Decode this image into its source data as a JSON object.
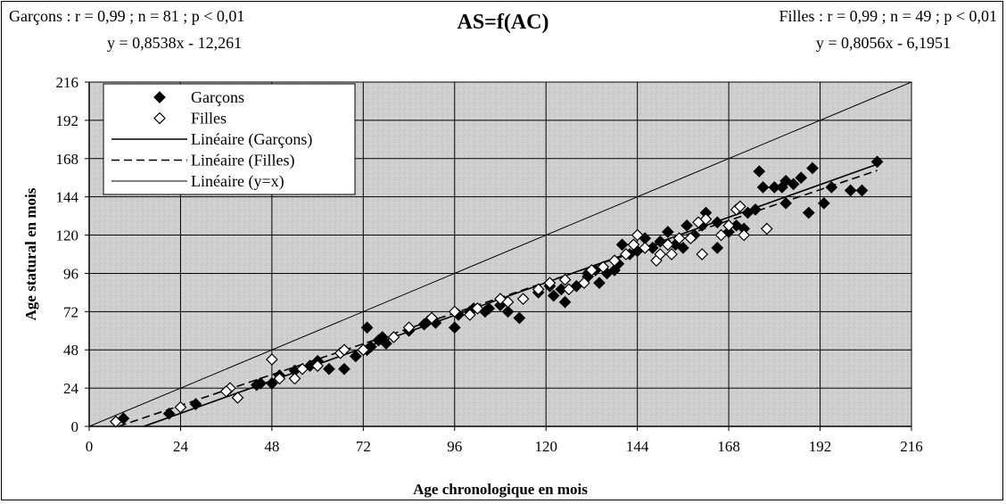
{
  "header": {
    "stats_boys": "Garçons : r = 0,99 ; n = 81 ; p < 0,01",
    "eq_boys": "y = 0,8538x - 12,261",
    "title": "AS=f(AC)",
    "stats_girls": "Filles : r = 0,99 ; n = 49 ; p < 0,01",
    "eq_girls": "y = 0,8056x - 6,1951"
  },
  "colors": {
    "plot_bg": "#cfcfcf",
    "grid": "#000000",
    "points": "#000000"
  },
  "chart_data": {
    "type": "scatter",
    "title": "AS=f(AC)",
    "xlabel": "Age chronologique en mois",
    "ylabel": "Age statural en mois",
    "xlim": [
      0,
      216
    ],
    "ylim": [
      0,
      216
    ],
    "xticks": [
      0,
      24,
      48,
      72,
      96,
      120,
      144,
      168,
      192,
      216
    ],
    "yticks": [
      0,
      24,
      48,
      72,
      96,
      120,
      144,
      168,
      192,
      216
    ],
    "grid": true,
    "legend_position": "top-left",
    "legend": [
      "Garçons",
      "Filles",
      "Linéaire (Garçons)",
      "Linéaire (Filles)",
      "Linéaire (y=x)"
    ],
    "series": [
      {
        "name": "Garçons",
        "marker": "filled-diamond",
        "points": [
          [
            9,
            5
          ],
          [
            21,
            8
          ],
          [
            28,
            14
          ],
          [
            44,
            26
          ],
          [
            45,
            27
          ],
          [
            48,
            27
          ],
          [
            50,
            32
          ],
          [
            54,
            35
          ],
          [
            58,
            38
          ],
          [
            60,
            41
          ],
          [
            63,
            36
          ],
          [
            67,
            36
          ],
          [
            70,
            44
          ],
          [
            72,
            48
          ],
          [
            73,
            62
          ],
          [
            73,
            48
          ],
          [
            74,
            50
          ],
          [
            76,
            54
          ],
          [
            77,
            56
          ],
          [
            78,
            52
          ],
          [
            84,
            60
          ],
          [
            88,
            64
          ],
          [
            89,
            66
          ],
          [
            91,
            65
          ],
          [
            96,
            62
          ],
          [
            97,
            70
          ],
          [
            100,
            72
          ],
          [
            101,
            74
          ],
          [
            104,
            72
          ],
          [
            105,
            74
          ],
          [
            108,
            76
          ],
          [
            110,
            72
          ],
          [
            113,
            68
          ],
          [
            118,
            84
          ],
          [
            121,
            88
          ],
          [
            122,
            82
          ],
          [
            124,
            86
          ],
          [
            125,
            78
          ],
          [
            128,
            88
          ],
          [
            131,
            96
          ],
          [
            133,
            98
          ],
          [
            134,
            90
          ],
          [
            136,
            96
          ],
          [
            138,
            98
          ],
          [
            139,
            102
          ],
          [
            140,
            114
          ],
          [
            144,
            110
          ],
          [
            146,
            118
          ],
          [
            148,
            112
          ],
          [
            150,
            116
          ],
          [
            152,
            122
          ],
          [
            154,
            114
          ],
          [
            156,
            112
          ],
          [
            159,
            120
          ],
          [
            161,
            126
          ],
          [
            162,
            134
          ],
          [
            165,
            128
          ],
          [
            165,
            112
          ],
          [
            168,
            122
          ],
          [
            170,
            126
          ],
          [
            172,
            124
          ],
          [
            173,
            134
          ],
          [
            175,
            136
          ],
          [
            176,
            160
          ],
          [
            177,
            150
          ],
          [
            180,
            150
          ],
          [
            182,
            150
          ],
          [
            183,
            154
          ],
          [
            183,
            140
          ],
          [
            185,
            152
          ],
          [
            187,
            156
          ],
          [
            189,
            134
          ],
          [
            190,
            162
          ],
          [
            193,
            140
          ],
          [
            195,
            150
          ],
          [
            200,
            148
          ],
          [
            203,
            148
          ],
          [
            207,
            166
          ],
          [
            157,
            126
          ],
          [
            142,
            108
          ],
          [
            131,
            94
          ]
        ]
      },
      {
        "name": "Filles",
        "marker": "open-diamond",
        "points": [
          [
            7,
            3
          ],
          [
            24,
            12
          ],
          [
            37,
            24
          ],
          [
            39,
            18
          ],
          [
            48,
            42
          ],
          [
            50,
            30
          ],
          [
            54,
            30
          ],
          [
            56,
            36
          ],
          [
            66,
            46
          ],
          [
            67,
            48
          ],
          [
            72,
            48
          ],
          [
            84,
            62
          ],
          [
            90,
            68
          ],
          [
            96,
            72
          ],
          [
            102,
            74
          ],
          [
            108,
            80
          ],
          [
            114,
            80
          ],
          [
            118,
            86
          ],
          [
            121,
            90
          ],
          [
            126,
            86
          ],
          [
            132,
            98
          ],
          [
            135,
            100
          ],
          [
            138,
            104
          ],
          [
            141,
            108
          ],
          [
            143,
            114
          ],
          [
            144,
            120
          ],
          [
            146,
            112
          ],
          [
            149,
            104
          ],
          [
            150,
            108
          ],
          [
            153,
            108
          ],
          [
            155,
            118
          ],
          [
            158,
            118
          ],
          [
            160,
            128
          ],
          [
            161,
            108
          ],
          [
            162,
            130
          ],
          [
            166,
            120
          ],
          [
            168,
            126
          ],
          [
            170,
            136
          ],
          [
            171,
            138
          ],
          [
            172,
            120
          ],
          [
            178,
            124
          ],
          [
            130,
            90
          ],
          [
            125,
            92
          ],
          [
            110,
            78
          ],
          [
            100,
            70
          ],
          [
            80,
            56
          ],
          [
            60,
            38
          ],
          [
            36,
            22
          ],
          [
            152,
            114
          ]
        ]
      },
      {
        "name": "Linéaire (Garçons)",
        "style": "solid",
        "slope": 0.8538,
        "intercept": -12.261,
        "x_range": [
          14.4,
          207
        ]
      },
      {
        "name": "Linéaire (Filles)",
        "style": "dashed",
        "slope": 0.8056,
        "intercept": -6.1951,
        "x_range": [
          7.7,
          207
        ]
      },
      {
        "name": "Linéaire (y=x)",
        "style": "thin",
        "slope": 1,
        "intercept": 0,
        "x_range": [
          0,
          216
        ]
      }
    ]
  }
}
